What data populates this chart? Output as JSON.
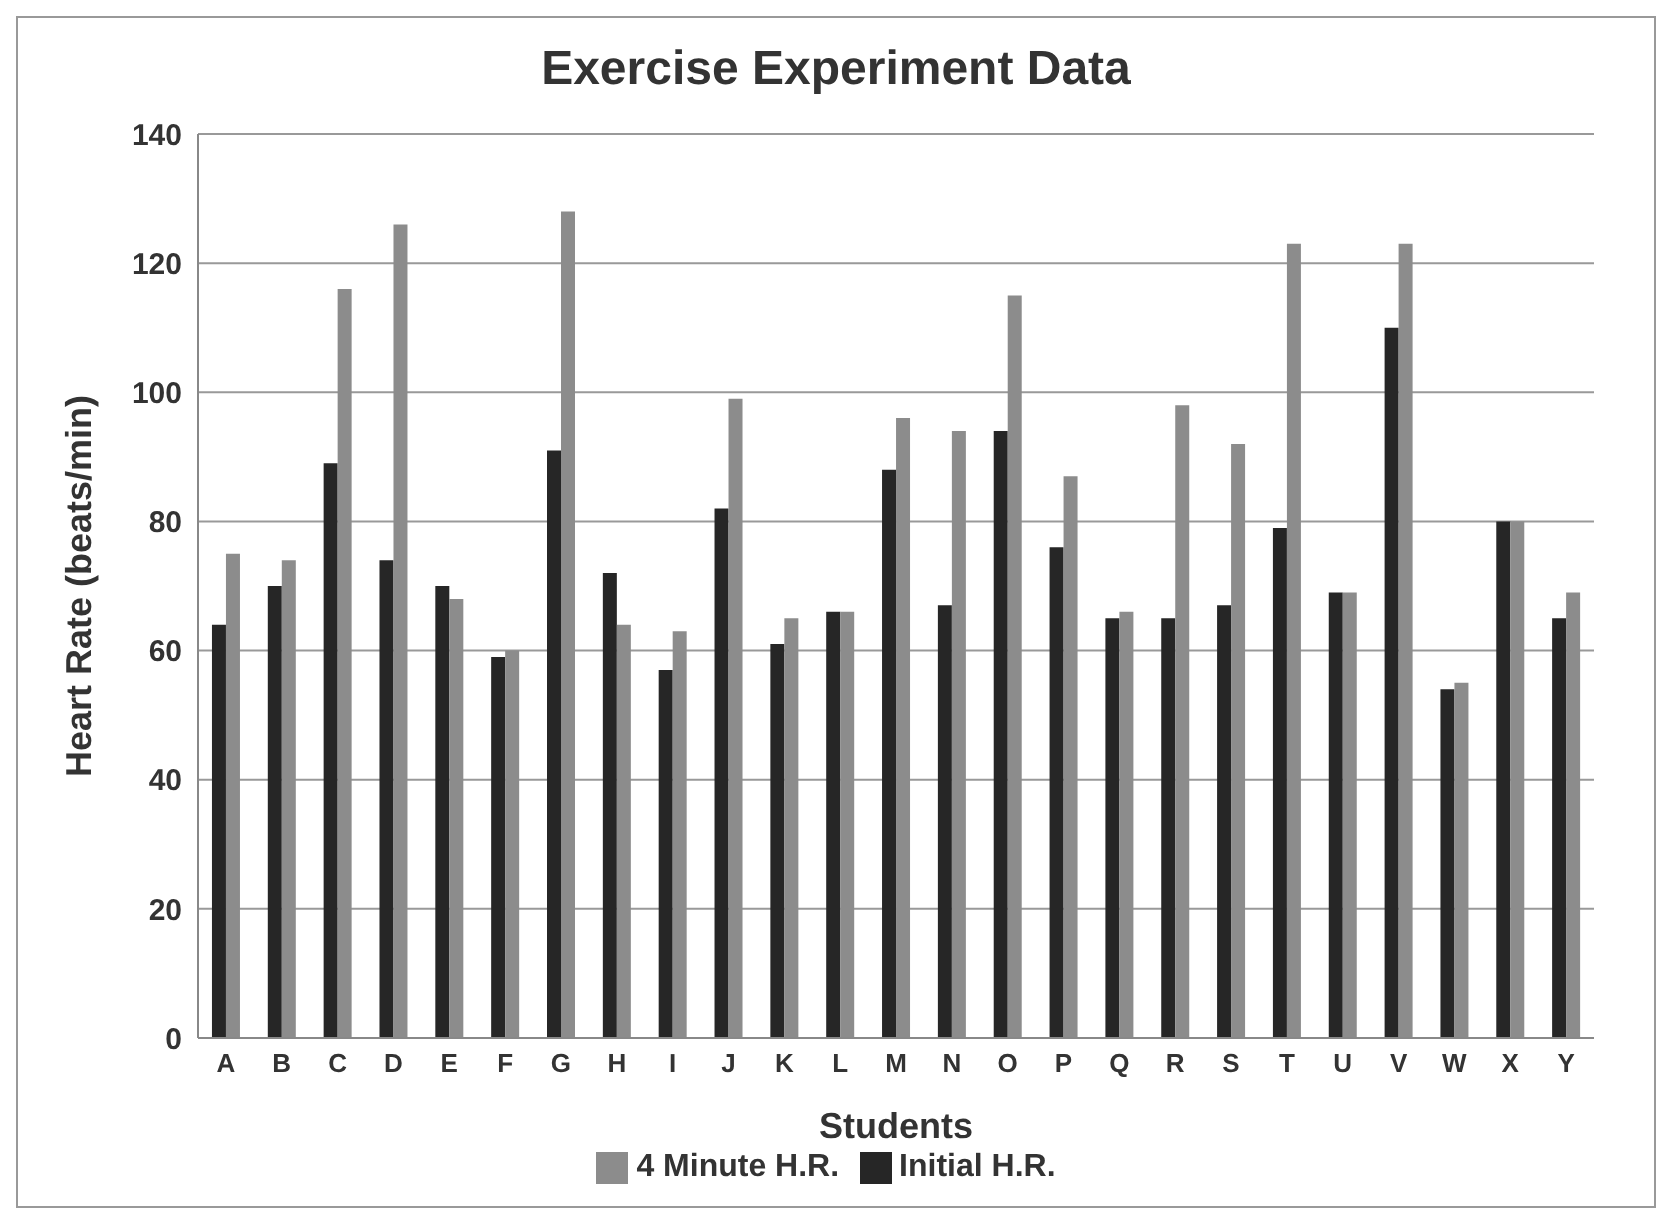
{
  "chart_data": {
    "type": "bar",
    "title": "Exercise Experiment Data",
    "xlabel": "Students",
    "ylabel": "Heart Rate (beats/min)",
    "categories": [
      "A",
      "B",
      "C",
      "D",
      "E",
      "F",
      "G",
      "H",
      "I",
      "J",
      "K",
      "L",
      "M",
      "N",
      "O",
      "P",
      "Q",
      "R",
      "S",
      "T",
      "U",
      "V",
      "W",
      "X",
      "Y"
    ],
    "series": [
      {
        "name": "Initial H.R.",
        "color": "#262626",
        "values": [
          64,
          70,
          89,
          74,
          70,
          59,
          91,
          72,
          57,
          82,
          61,
          66,
          88,
          67,
          94,
          76,
          65,
          65,
          67,
          79,
          69,
          110,
          54,
          80,
          65
        ]
      },
      {
        "name": "4 Minute H.R.",
        "color": "#8c8c8c",
        "values": [
          75,
          74,
          116,
          126,
          68,
          60,
          128,
          64,
          63,
          99,
          65,
          66,
          96,
          94,
          115,
          87,
          66,
          98,
          92,
          123,
          69,
          123,
          55,
          80,
          69
        ]
      }
    ],
    "ylim": [
      0,
      140
    ],
    "yticks": [
      0,
      20,
      40,
      60,
      80,
      100,
      120,
      140
    ],
    "grid": "y",
    "legend": "bottom"
  }
}
